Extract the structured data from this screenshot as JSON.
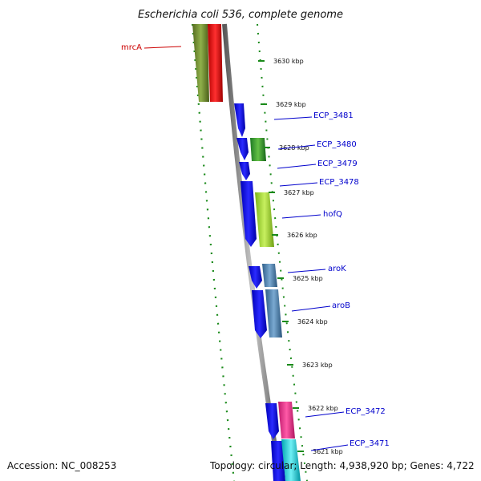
{
  "title": "Escherichia coli 536, complete genome",
  "footer": {
    "accession": "Accession: NC_008253",
    "summary": "Topology: circular; Length: 4,938,920 bp; Genes: 4,722"
  },
  "ticks": [
    "3630 kbp",
    "3629 kbp",
    "3628 kbp",
    "3627 kbp",
    "3626 kbp",
    "3625 kbp",
    "3624 kbp",
    "3623 kbp",
    "3622 kbp",
    "3621 kbp"
  ],
  "gene_labels": [
    {
      "name": "mrcA",
      "color": "#cc0000"
    },
    {
      "name": "ECP_3481",
      "color": "#0000cc"
    },
    {
      "name": "ECP_3480",
      "color": "#0000cc"
    },
    {
      "name": "ECP_3479",
      "color": "#0000cc"
    },
    {
      "name": "ECP_3478",
      "color": "#0000cc"
    },
    {
      "name": "hofQ",
      "color": "#0000cc"
    },
    {
      "name": "aroK",
      "color": "#0000cc"
    },
    {
      "name": "aroB",
      "color": "#0000cc"
    },
    {
      "name": "ECP_3472",
      "color": "#0000cc"
    },
    {
      "name": "ECP_3471",
      "color": "#0000cc"
    }
  ],
  "colors": {
    "cds_blue": "#0a0af0",
    "olive": "#6b8e23",
    "red": "#ee0000",
    "lime": "#9acd32",
    "green": "#32a83a",
    "steel": "#4682b4",
    "pink": "#e8368f",
    "cyan": "#00c8d2",
    "backbone": "#7a7a7a",
    "tick_green": "#1a8a1a"
  }
}
